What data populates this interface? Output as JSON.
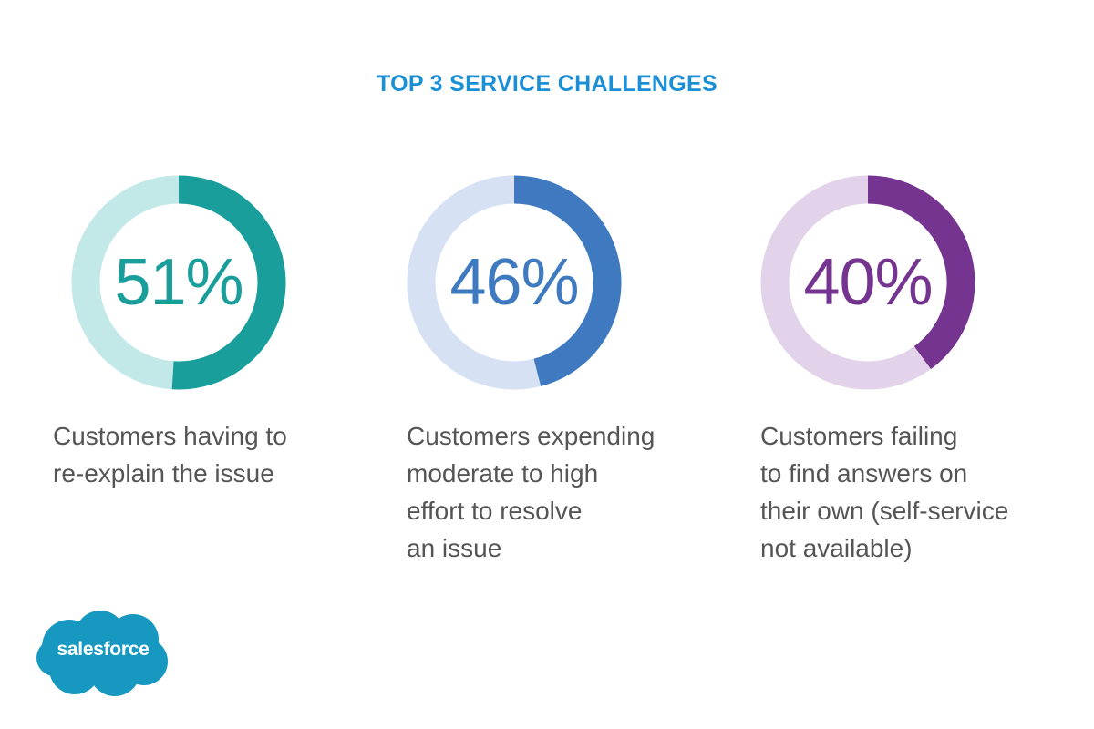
{
  "title": "TOP 3 SERVICE CHALLENGES",
  "chart_data": {
    "type": "donut",
    "title": "TOP 3 SERVICE CHALLENGES",
    "items": [
      {
        "value": 51,
        "label": "51%",
        "description": [
          "Customers having to",
          "re-explain the issue"
        ],
        "color": "#1a9e9c",
        "track_color": "#c2e8e8"
      },
      {
        "value": 46,
        "label": "46%",
        "description": [
          "Customers expending",
          "moderate to high",
          "effort to resolve",
          "an issue"
        ],
        "color": "#3f7ac1",
        "track_color": "#d6e2f3"
      },
      {
        "value": 40,
        "label": "40%",
        "description": [
          "Customers failing",
          "to find answers on",
          "their own (self-service",
          "not available)"
        ],
        "color": "#74348f",
        "track_color": "#e2d3eb"
      }
    ]
  },
  "logo": {
    "text": "salesforce",
    "color": "#1798c1"
  }
}
